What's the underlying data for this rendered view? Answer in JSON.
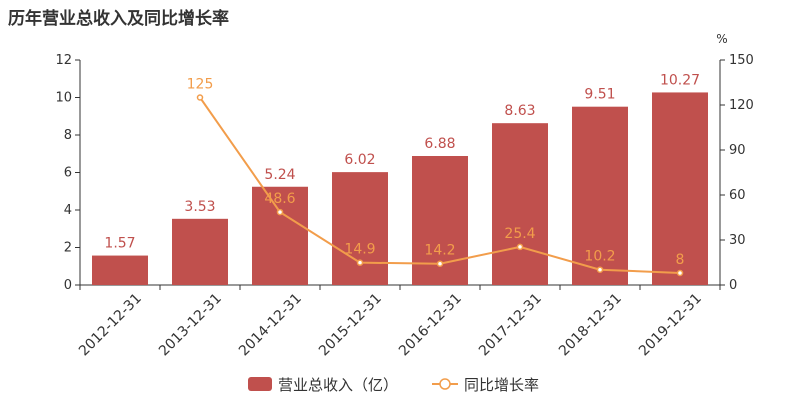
{
  "chart_data": {
    "type": "bar",
    "title": "历年营业总收入及同比增长率",
    "categories": [
      "2012-12-31",
      "2013-12-31",
      "2014-12-31",
      "2015-12-31",
      "2016-12-31",
      "2017-12-31",
      "2018-12-31",
      "2019-12-31"
    ],
    "series": [
      {
        "name": "营业总收入（亿）",
        "type": "bar",
        "axis": "left",
        "color": "#c0504d",
        "values": [
          1.57,
          3.53,
          5.24,
          6.02,
          6.88,
          8.63,
          9.51,
          10.27
        ],
        "labels": [
          "1.57",
          "3.53",
          "5.24",
          "6.02",
          "6.88",
          "8.63",
          "9.51",
          "10.27"
        ]
      },
      {
        "name": "同比增长率",
        "type": "line",
        "axis": "right",
        "color": "#f29d4b",
        "values": [
          null,
          125,
          48.6,
          14.9,
          14.2,
          25.4,
          10.2,
          8
        ],
        "labels": [
          "",
          "125",
          "48.6",
          "14.9",
          "14.2",
          "25.4",
          "10.2",
          "8"
        ]
      }
    ],
    "y_left": {
      "min": 0,
      "max": 12,
      "ticks": [
        0,
        2,
        4,
        6,
        8,
        10,
        12
      ]
    },
    "y_right": {
      "min": 0,
      "max": 150,
      "ticks": [
        0,
        30,
        60,
        90,
        120,
        150
      ],
      "unit_label": "%"
    },
    "grid": false,
    "legend_position": "bottom"
  }
}
